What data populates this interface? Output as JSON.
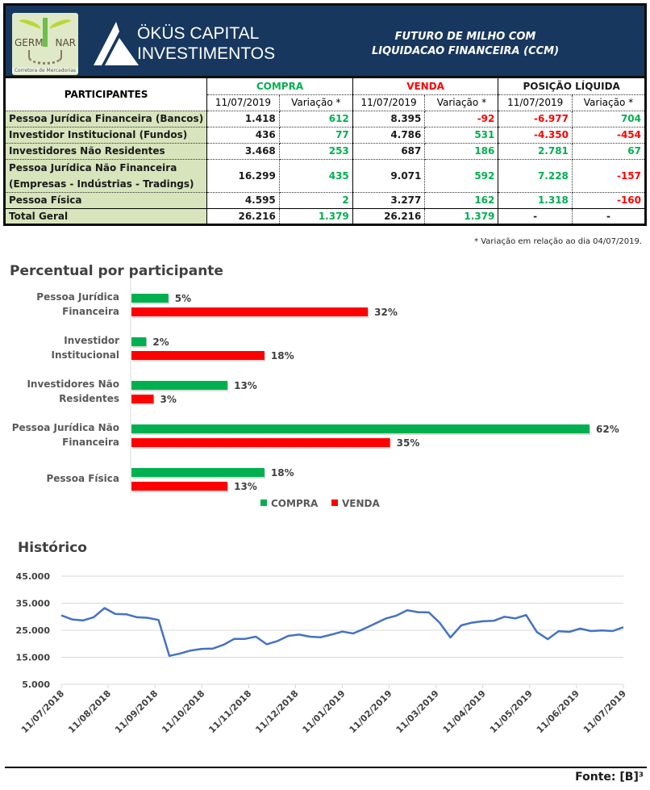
{
  "header": {
    "germinar_logo": {
      "left": "GERM",
      "right": "NAR",
      "tagline": "Corretora de Mercadorias"
    },
    "okus_logo": {
      "line1": "ÖKÜS CAPITAL",
      "line2": "INVESTIMENTOS"
    },
    "title_line1": "FUTURO DE MILHO COM",
    "title_line2": "LIQUIDACAO FINANCEIRA (CCM)"
  },
  "table": {
    "participants_header": "PARTICIPANTES",
    "groups": [
      {
        "label": "COMPRA",
        "color": "#00b050"
      },
      {
        "label": "VENDA",
        "color": "#ff0000"
      },
      {
        "label": "POSIÇÃO LÍQUIDA",
        "color": "#1a1a1a"
      }
    ],
    "subheaders": [
      "11/07/2019",
      "Variação *",
      "11/07/2019",
      "Variação *",
      "11/07/2019",
      "Variação *"
    ],
    "rows": [
      {
        "label": "Pessoa Jurídica Financeira (Bancos)",
        "values": [
          "1.418",
          "612",
          "8.395",
          "-92",
          "-6.977",
          "704"
        ],
        "colors": [
          "black",
          "green",
          "black",
          "red",
          "red",
          "green"
        ]
      },
      {
        "label": "Investidor Institucional (Fundos)",
        "values": [
          "436",
          "77",
          "4.786",
          "531",
          "-4.350",
          "-454"
        ],
        "colors": [
          "black",
          "green",
          "black",
          "green",
          "red",
          "red"
        ]
      },
      {
        "label": "Investidores Não Residentes",
        "values": [
          "3.468",
          "253",
          "687",
          "186",
          "2.781",
          "67"
        ],
        "colors": [
          "black",
          "green",
          "black",
          "green",
          "green",
          "green"
        ]
      },
      {
        "label": "Pessoa Jurídica Não Financeira",
        "label2": "(Empresas - Indústrias - Tradings)",
        "values": [
          "16.299",
          "435",
          "9.071",
          "592",
          "7.228",
          "-157"
        ],
        "colors": [
          "black",
          "green",
          "black",
          "green",
          "green",
          "red"
        ]
      },
      {
        "label": "Pessoa Física",
        "values": [
          "4.595",
          "2",
          "3.277",
          "162",
          "1.318",
          "-160"
        ],
        "colors": [
          "black",
          "green",
          "black",
          "green",
          "green",
          "red"
        ]
      }
    ],
    "total": {
      "label": "Total Geral",
      "values": [
        "26.216",
        "1.379",
        "26.216",
        "1.379",
        "-",
        "-"
      ],
      "colors": [
        "black",
        "green",
        "black",
        "green",
        "black",
        "black"
      ]
    },
    "footnote": "* Variação em relação ao dia 04/07/2019."
  },
  "chart_data": [
    {
      "type": "bar",
      "orientation": "horizontal",
      "title": "Percentual por participante",
      "categories": [
        [
          "Pessoa Jurídica",
          "Financeira"
        ],
        [
          "Investidor",
          "Institucional"
        ],
        [
          "Investidores Não",
          "Residentes"
        ],
        [
          "Pessoa Jurídica Não",
          "Financeira"
        ],
        [
          "Pessoa Física"
        ]
      ],
      "series": [
        {
          "name": "COMPRA",
          "color": "#00b050",
          "values": [
            5,
            2,
            13,
            62,
            18
          ],
          "labels": [
            "5%",
            "2%",
            "13%",
            "62%",
            "18%"
          ]
        },
        {
          "name": "VENDA",
          "color": "#ff0000",
          "values": [
            32,
            18,
            3,
            35,
            13
          ],
          "labels": [
            "32%",
            "18%",
            "3%",
            "35%",
            "13%"
          ]
        }
      ],
      "xlim": [
        0,
        62
      ],
      "legend": "bottom",
      "grid": false
    },
    {
      "type": "line",
      "title": "Histórico",
      "ylim": [
        5000,
        45000
      ],
      "yticks": [
        45000,
        35000,
        25000,
        15000,
        5000
      ],
      "ytick_labels": [
        "45.000",
        "35.000",
        "25.000",
        "15.000",
        "5.000"
      ],
      "xtick_labels": [
        "11/07/2018",
        "11/08/2018",
        "11/09/2018",
        "11/10/2018",
        "11/11/2018",
        "11/12/2018",
        "11/01/2019",
        "11/02/2019",
        "11/03/2019",
        "11/04/2019",
        "11/05/2019",
        "11/06/2019",
        "11/07/2019"
      ],
      "grid": true,
      "color": "#4472c4",
      "series": [
        {
          "name": "Histórico",
          "values": [
            30500,
            29000,
            28600,
            29800,
            33200,
            31000,
            30900,
            29800,
            29600,
            28800,
            15500,
            16400,
            17500,
            18100,
            18200,
            19600,
            21800,
            21800,
            22600,
            19800,
            21000,
            22900,
            23400,
            22600,
            22400,
            23400,
            24500,
            23800,
            25500,
            27400,
            29300,
            30400,
            32400,
            31700,
            31600,
            27800,
            22300,
            26800,
            27800,
            28300,
            28500,
            30000,
            29400,
            30600,
            24300,
            21700,
            24600,
            24400,
            25600,
            24700,
            24900,
            24700,
            26100
          ]
        }
      ]
    }
  ],
  "source": "Fonte: [B]³"
}
